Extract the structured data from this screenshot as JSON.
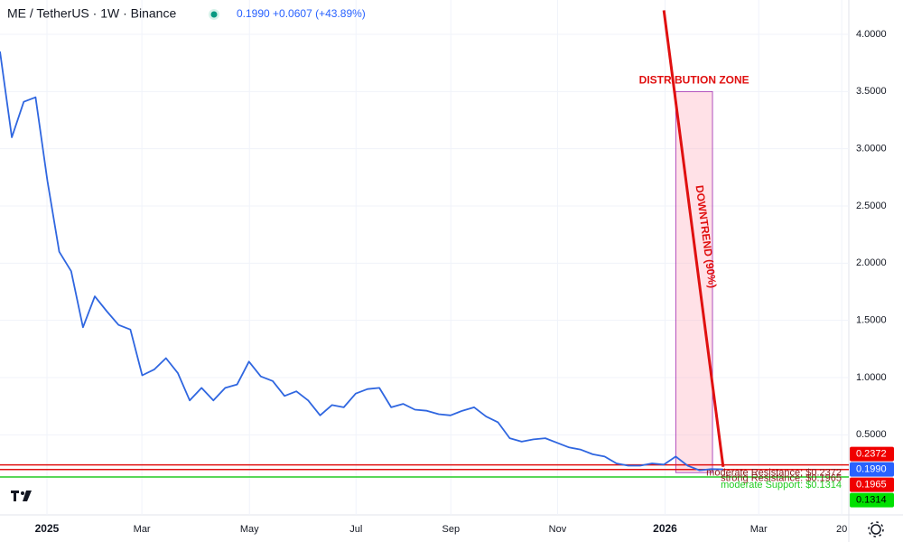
{
  "chart_data": {
    "type": "line",
    "title": "ME / TetherUS · 1W · Binance",
    "subtitle": "0.1990 +0.0607 (+43.89%)",
    "color": "#2f66e0",
    "values": [
      3.85,
      3.1,
      3.41,
      3.45,
      2.72,
      2.1,
      1.93,
      1.44,
      1.71,
      1.58,
      1.46,
      1.42,
      1.02,
      1.07,
      1.17,
      1.04,
      0.8,
      0.91,
      0.8,
      0.91,
      0.94,
      1.14,
      1.01,
      0.97,
      0.84,
      0.88,
      0.8,
      0.67,
      0.76,
      0.74,
      0.86,
      0.9,
      0.91,
      0.74,
      0.77,
      0.72,
      0.71,
      0.68,
      0.67,
      0.71,
      0.74,
      0.66,
      0.61,
      0.47,
      0.44,
      0.46,
      0.47,
      0.43,
      0.39,
      0.37,
      0.33,
      0.31,
      0.25,
      0.23,
      0.23,
      0.25,
      0.24,
      0.31,
      0.23,
      0.19,
      0.2,
      0.199
    ],
    "last_price": {
      "value": 0.199,
      "label": "0.1990"
    },
    "xlim": [
      0,
      71.6
    ],
    "xticks": [
      {
        "value": 3.96,
        "label": "2025"
      },
      {
        "value": 11.97,
        "label": "Mar"
      },
      {
        "value": 21.04,
        "label": "May"
      },
      {
        "value": 30.03,
        "label": "Jul"
      },
      {
        "value": 38.03,
        "label": "Sep"
      },
      {
        "value": 47.03,
        "label": "Nov"
      },
      {
        "value": 56.1,
        "label": "2026"
      },
      {
        "value": 64.0,
        "label": "Mar"
      },
      {
        "value": 71.0,
        "label": "20"
      }
    ],
    "ylim": [
      -0.2,
      4.3
    ],
    "yticks": [
      {
        "value": 0.5,
        "label": "0.5000"
      },
      {
        "value": 1,
        "label": "1.0000"
      },
      {
        "value": 1.5,
        "label": "1.5000"
      },
      {
        "value": 2,
        "label": "2.0000"
      },
      {
        "value": 2.5,
        "label": "2.5000"
      },
      {
        "value": 3,
        "label": "3.0000"
      },
      {
        "value": 3.5,
        "label": "3.5000"
      },
      {
        "value": 4,
        "label": "4.0000"
      }
    ],
    "grid": true,
    "levels": [
      {
        "label": "moderate Resistance: $0.2372",
        "value": 0.2372,
        "color": "#e01010"
      },
      {
        "label": "strong Resistance: $0.1965",
        "value": 0.1965,
        "color": "#e01010"
      },
      {
        "label": "moderate Support: $0.1314",
        "value": 0.1314,
        "color": "#22cc22"
      }
    ],
    "trendline": {
      "label": "DOWNTREND (90%)",
      "x": [
        56,
        61
      ],
      "values": [
        4.21,
        0.22
      ],
      "color": "#e01010"
    },
    "zone": {
      "label": "DISTRIBUTION ZONE",
      "x": [
        57,
        60.1
      ],
      "y": [
        0.17,
        3.5
      ]
    }
  }
}
